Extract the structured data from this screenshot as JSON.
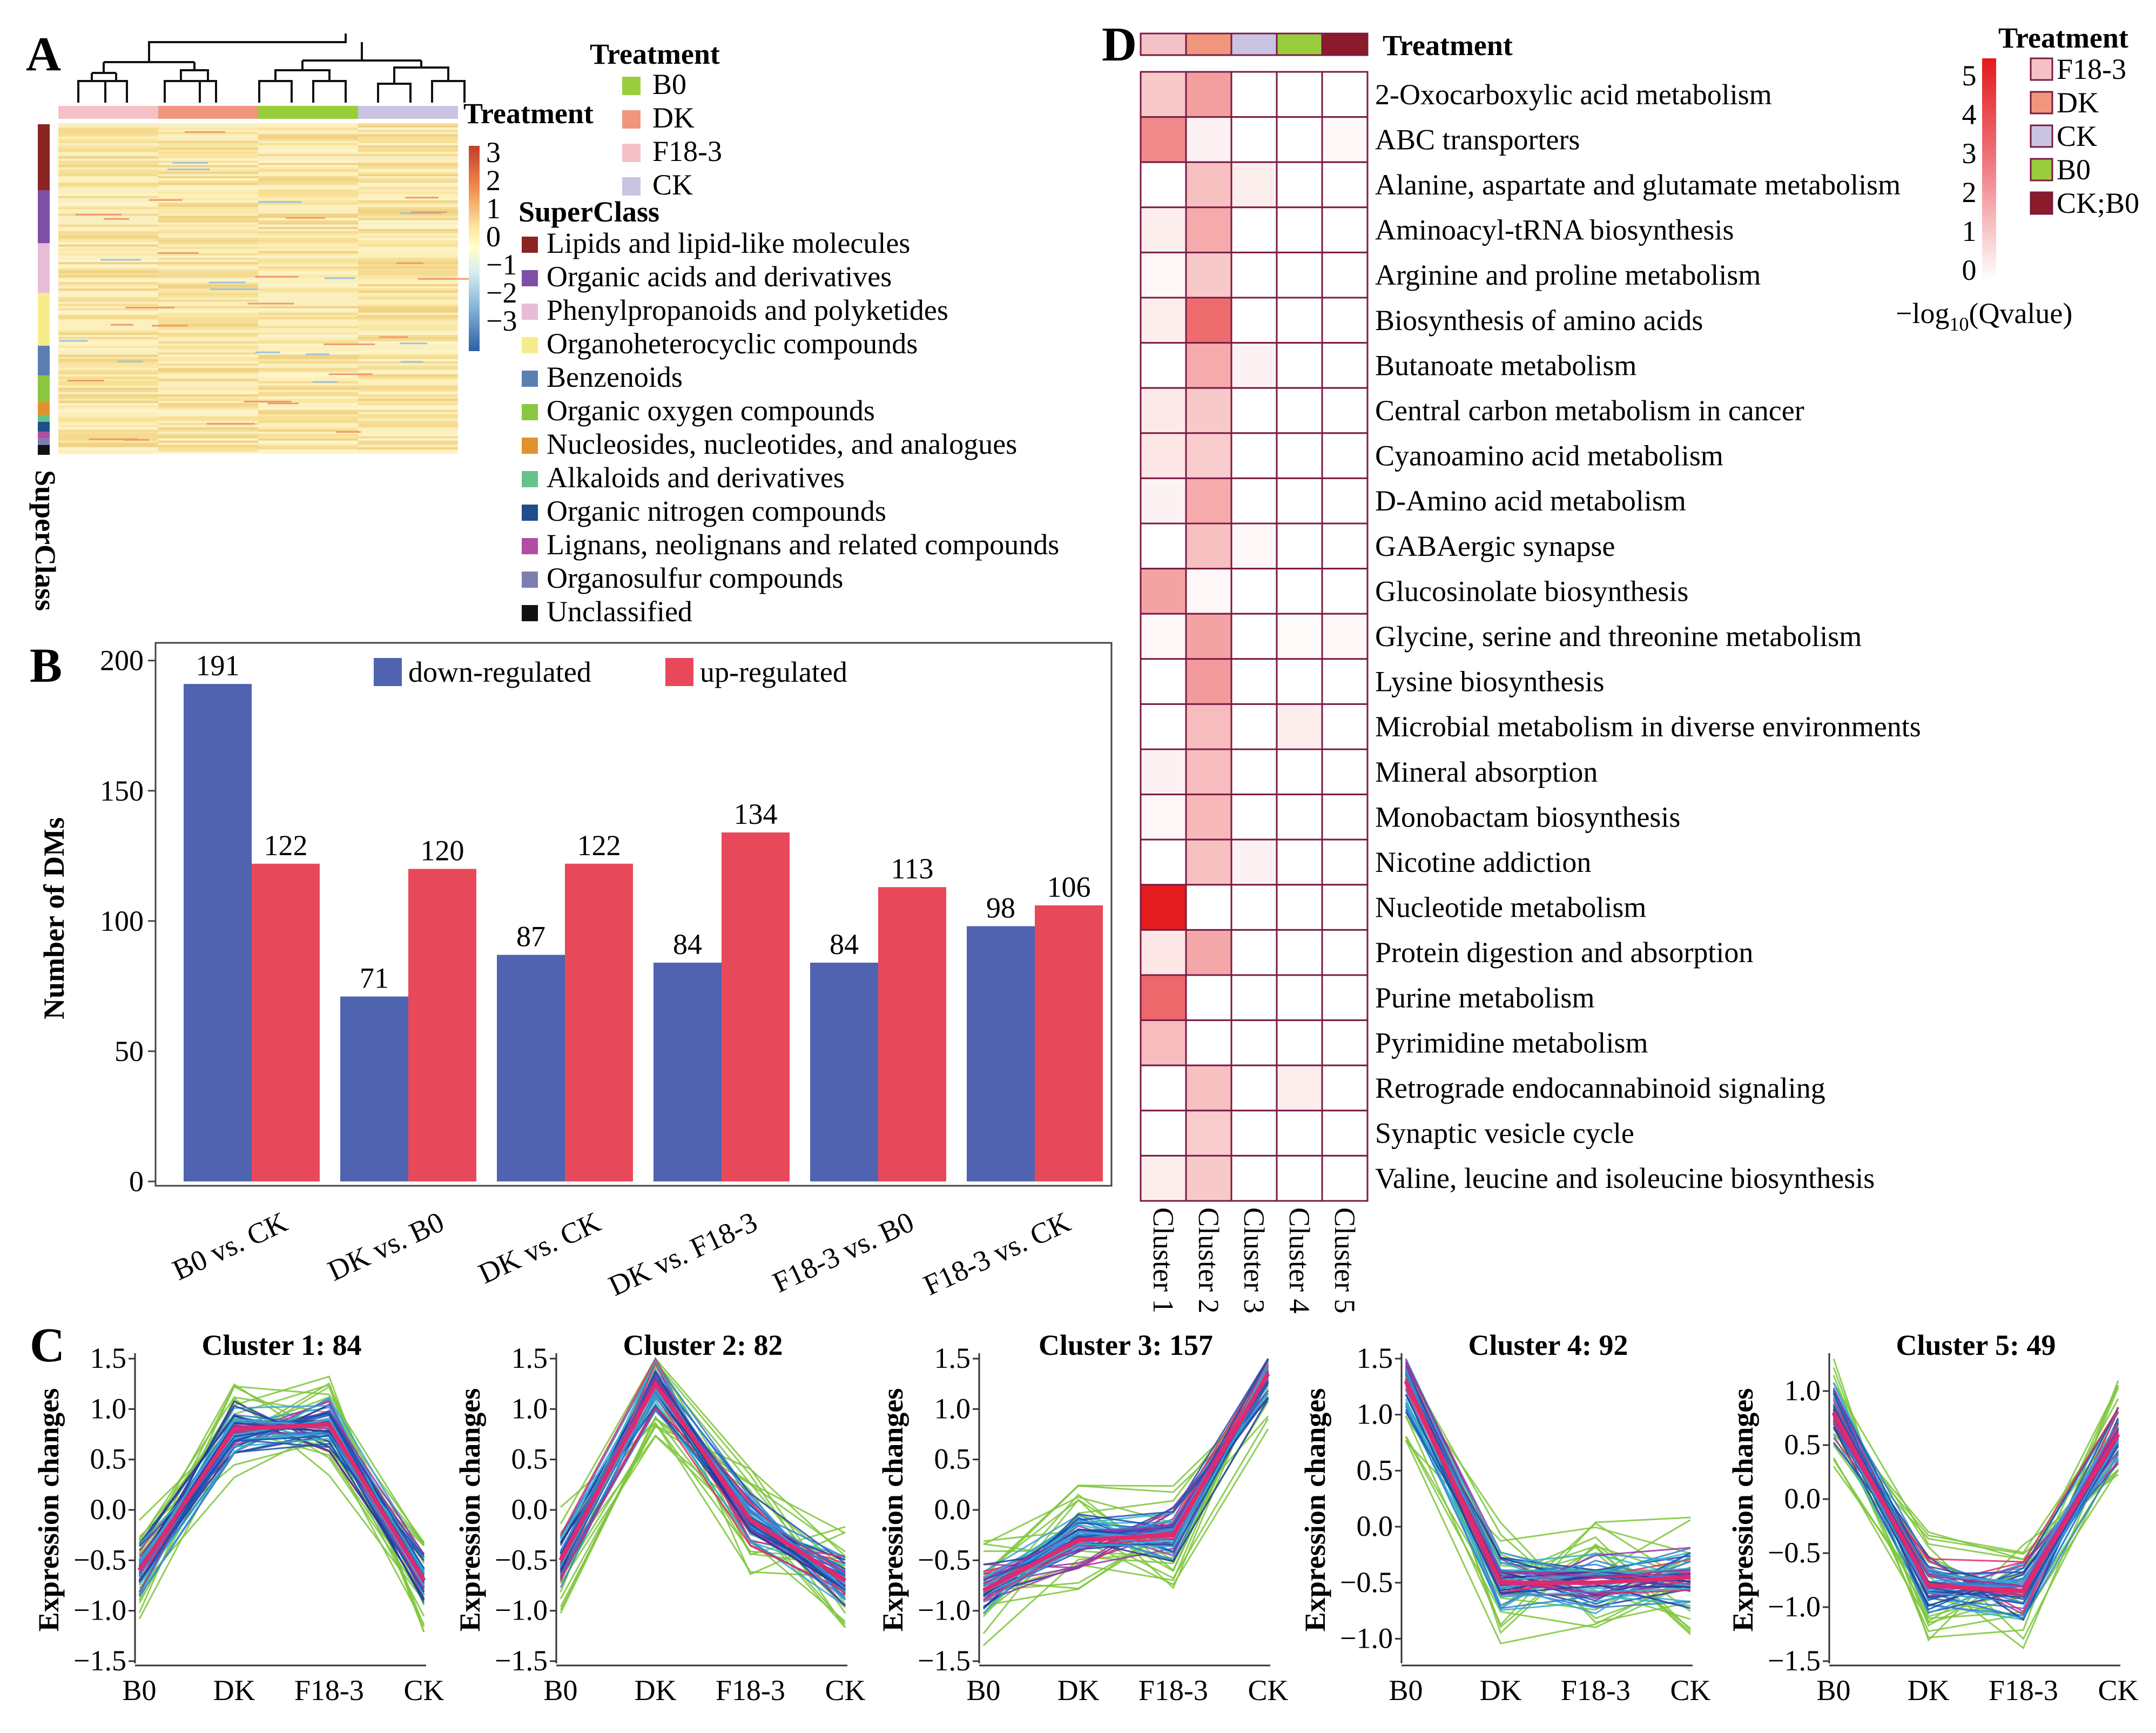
{
  "panels": {
    "a": {
      "letter": "A",
      "treatment_label": "Treatment",
      "column_groups": [
        {
          "name": "F18-3",
          "color": "#f4c2c6"
        },
        {
          "name": "DK",
          "color": "#f0967d"
        },
        {
          "name": "B0",
          "color": "#9acd3c"
        },
        {
          "name": "CK",
          "color": "#c9c4e2"
        }
      ],
      "treatment_legend_title": "Treatment",
      "treatment_legend": [
        {
          "name": "B0",
          "color": "#9acd3c"
        },
        {
          "name": "DK",
          "color": "#f0967d"
        },
        {
          "name": "F18-3",
          "color": "#f4c2c6"
        },
        {
          "name": "CK",
          "color": "#c9c4e2"
        }
      ],
      "scale_ticks": [
        "3",
        "2",
        "1",
        "0",
        "−1",
        "−2",
        "−3"
      ],
      "superclass_title": "SuperClass",
      "superclass_axis_label": "SuperClass",
      "superclass_legend": [
        {
          "name": "Lipids and lipid-like molecules",
          "color": "#8b2323"
        },
        {
          "name": "Organic acids and derivatives",
          "color": "#7e4fa6"
        },
        {
          "name": "Phenylpropanoids and polyketides",
          "color": "#e8bcd8"
        },
        {
          "name": "Organoheterocyclic compounds",
          "color": "#f6ec8b"
        },
        {
          "name": "Benzenoids",
          "color": "#5b7fb3"
        },
        {
          "name": "Organic oxygen compounds",
          "color": "#8cc63f"
        },
        {
          "name": "Nucleosides, nucleotides, and analogues",
          "color": "#e0922f"
        },
        {
          "name": "Alkaloids and derivatives",
          "color": "#66c28a"
        },
        {
          "name": "Organic nitrogen compounds",
          "color": "#1f4e8c"
        },
        {
          "name": "Lignans, neolignans and related compounds",
          "color": "#b04ea0"
        },
        {
          "name": "Organosulfur compounds",
          "color": "#7b7fb0"
        },
        {
          "name": "Unclassified",
          "color": "#111111"
        }
      ]
    },
    "b": {
      "letter": "B"
    },
    "c": {
      "letter": "C",
      "ylabel": "Expression changes",
      "x_categories": [
        "B0",
        "DK",
        "F18-3",
        "CK"
      ]
    },
    "d": {
      "letter": "D",
      "treatment_label": "Treatment",
      "column_header_colors": [
        "#f4c2c6",
        "#f0967d",
        "#c9c4e2",
        "#9acd3c",
        "#8b1a2b"
      ],
      "legend_title": "Treatment",
      "legend": [
        {
          "name": "F18-3",
          "color": "#f4c2c6"
        },
        {
          "name": "DK",
          "color": "#f0967d"
        },
        {
          "name": "CK",
          "color": "#c9c4e2"
        },
        {
          "name": "B0",
          "color": "#9acd3c"
        },
        {
          "name": "CK;B0",
          "color": "#8b1a2b"
        }
      ],
      "scale_ticks": [
        "5",
        "4",
        "3",
        "2",
        "1",
        "0"
      ],
      "scale_label_prefix": "−log",
      "scale_label_sub": "10",
      "scale_label_suffix": "(Qvalue)"
    }
  },
  "chart_data": [
    {
      "type": "heatmap",
      "panel": "A",
      "title": "",
      "row_annotation": "SuperClass",
      "column_annotation": "Treatment",
      "column_groups": [
        "F18-3",
        "DK",
        "B0",
        "CK"
      ],
      "color_range": [
        -3,
        3
      ]
    },
    {
      "type": "bar",
      "panel": "B",
      "title": "",
      "xlabel": "",
      "ylabel": "Number of DMs",
      "ylim": [
        0,
        210
      ],
      "yticks": [
        0,
        50,
        100,
        150,
        200
      ],
      "categories": [
        "B0 vs. CK",
        "DK vs. B0",
        "DK vs. CK",
        "DK vs. F18-3",
        "F18-3 vs. B0",
        "F18-3 vs. CK"
      ],
      "series": [
        {
          "name": "down-regulated",
          "color": "#4f63b0",
          "values": [
            191,
            71,
            87,
            84,
            84,
            98
          ]
        },
        {
          "name": "up-regulated",
          "color": "#e8495a",
          "values": [
            122,
            120,
            122,
            134,
            113,
            106
          ]
        }
      ]
    },
    {
      "type": "line",
      "panel": "C",
      "x": [
        "B0",
        "DK",
        "F18-3",
        "CK"
      ],
      "ylabel": "Expression changes",
      "clusters": [
        {
          "title": "Cluster 1: 84",
          "ylim": [
            -1.5,
            1.5
          ],
          "yticks": [
            -1.5,
            -1.0,
            -0.5,
            0.0,
            0.5,
            1.0,
            1.5
          ],
          "mean": [
            -0.6,
            0.8,
            0.85,
            -0.7
          ]
        },
        {
          "title": "Cluster 2: 82",
          "ylim": [
            -1.5,
            1.5
          ],
          "yticks": [
            -1.5,
            -1.0,
            -0.5,
            0.0,
            0.5,
            1.0,
            1.5
          ],
          "mean": [
            -0.5,
            1.25,
            -0.1,
            -0.7
          ]
        },
        {
          "title": "Cluster 3: 157",
          "ylim": [
            -1.5,
            1.5
          ],
          "yticks": [
            -1.5,
            -1.0,
            -0.5,
            0.0,
            0.5,
            1.0,
            1.5
          ],
          "mean": [
            -0.8,
            -0.3,
            -0.25,
            1.35
          ]
        },
        {
          "title": "Cluster 4: 92",
          "ylim": [
            -1.2,
            1.5
          ],
          "yticks": [
            -1.0,
            -0.5,
            0.0,
            0.5,
            1.0,
            1.5
          ],
          "mean": [
            1.3,
            -0.5,
            -0.5,
            -0.45
          ]
        },
        {
          "title": "Cluster 5: 49",
          "ylim": [
            -1.5,
            1.3
          ],
          "yticks": [
            -1.5,
            -1.0,
            -0.5,
            0.0,
            0.5,
            1.0
          ],
          "mean": [
            0.8,
            -0.8,
            -0.85,
            0.6
          ]
        }
      ]
    },
    {
      "type": "heatmap",
      "panel": "D",
      "columns": [
        "Cluster 1",
        "Cluster 2",
        "Cluster 3",
        "Cluster 4",
        "Cluster 5"
      ],
      "color_range": [
        0,
        5.5
      ],
      "rows": [
        {
          "label": "2-Oxocarboxylic acid metabolism",
          "values": [
            1.3,
            2.3,
            0,
            0,
            0
          ]
        },
        {
          "label": "ABC transporters",
          "values": [
            2.8,
            0.3,
            0,
            0,
            0.2
          ]
        },
        {
          "label": "Alanine, aspartate and glutamate metabolism",
          "values": [
            0,
            1.5,
            0.4,
            0,
            0
          ]
        },
        {
          "label": "Aminoacyl-tRNA biosynthesis",
          "values": [
            0.4,
            2.0,
            0,
            0,
            0
          ]
        },
        {
          "label": "Arginine and proline metabolism",
          "values": [
            0.2,
            1.3,
            0,
            0,
            0
          ]
        },
        {
          "label": "Biosynthesis of amino acids",
          "values": [
            0.4,
            3.5,
            0,
            0,
            0
          ]
        },
        {
          "label": "Butanoate metabolism",
          "values": [
            0,
            2.0,
            0.3,
            0,
            0
          ]
        },
        {
          "label": "Central carbon metabolism in cancer",
          "values": [
            0.5,
            1.3,
            0,
            0,
            0
          ]
        },
        {
          "label": "Cyanoamino acid metabolism",
          "values": [
            0.6,
            1.2,
            0,
            0,
            0
          ]
        },
        {
          "label": "D-Amino acid metabolism",
          "values": [
            0.3,
            2.0,
            0,
            0,
            0
          ]
        },
        {
          "label": "GABAergic synapse",
          "values": [
            0,
            1.5,
            0.2,
            0,
            0
          ]
        },
        {
          "label": "Glucosinolate biosynthesis",
          "values": [
            2.2,
            0.2,
            0,
            0,
            0
          ]
        },
        {
          "label": "Glycine, serine and threonine metabolism",
          "values": [
            0.2,
            2.2,
            0,
            0.1,
            0.2
          ]
        },
        {
          "label": "Lysine biosynthesis",
          "values": [
            0,
            2.4,
            0,
            0,
            0
          ]
        },
        {
          "label": "Microbial metabolism in diverse environments",
          "values": [
            0,
            1.6,
            0,
            0.4,
            0
          ]
        },
        {
          "label": "Mineral absorption",
          "values": [
            0.3,
            1.6,
            0,
            0,
            0
          ]
        },
        {
          "label": "Monobactam biosynthesis",
          "values": [
            0.2,
            1.7,
            0,
            0,
            0
          ]
        },
        {
          "label": "Nicotine addiction",
          "values": [
            0,
            1.5,
            0.3,
            0,
            0
          ]
        },
        {
          "label": "Nucleotide metabolism",
          "values": [
            5.4,
            0,
            0,
            0,
            0
          ]
        },
        {
          "label": "Protein digestion and absorption",
          "values": [
            0.6,
            2.1,
            0,
            0,
            0
          ]
        },
        {
          "label": "Purine metabolism",
          "values": [
            3.6,
            0,
            0,
            0,
            0
          ]
        },
        {
          "label": "Pyrimidine metabolism",
          "values": [
            1.6,
            0,
            0,
            0,
            0
          ]
        },
        {
          "label": "Retrograde endocannabinoid signaling",
          "values": [
            0,
            1.5,
            0,
            0.4,
            0
          ]
        },
        {
          "label": "Synaptic vesicle cycle",
          "values": [
            0,
            1.2,
            0,
            0,
            0
          ]
        },
        {
          "label": "Valine, leucine and isoleucine biosynthesis",
          "values": [
            0.4,
            1.3,
            0,
            0,
            0
          ]
        }
      ]
    }
  ]
}
